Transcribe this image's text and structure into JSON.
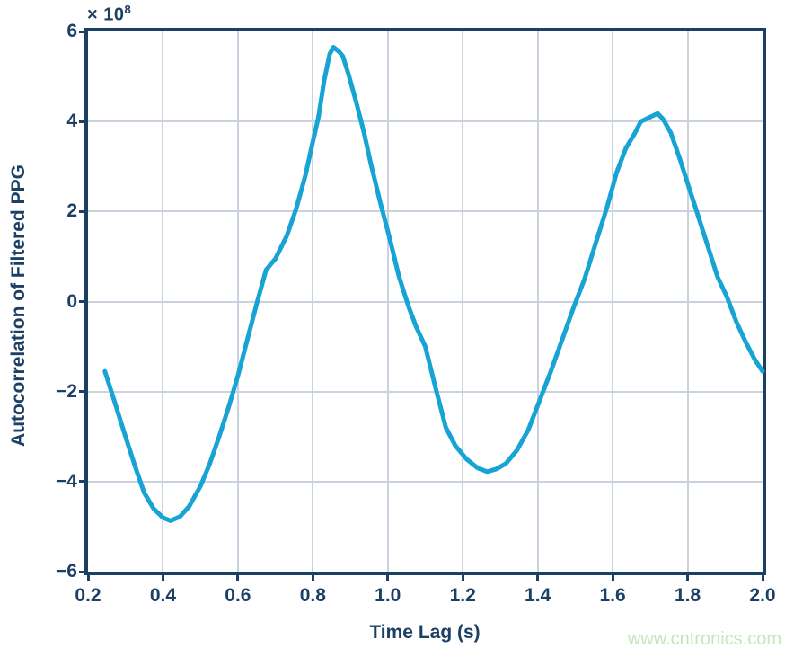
{
  "figure": {
    "offset": {
      "base": "× 10",
      "exp": "8"
    },
    "x_axis": {
      "label": "Time Lag (s)",
      "tick_values": [
        0.2,
        0.4,
        0.6,
        0.8,
        1.0,
        1.2,
        1.4,
        1.6,
        1.8,
        2.0
      ],
      "tick_labels": [
        "0.2",
        "0.4",
        "0.6",
        "0.8",
        "1.0",
        "1.2",
        "1.4",
        "1.6",
        "1.8",
        "2.0"
      ]
    },
    "y_axis": {
      "label": "Autocorrelation of Filtered PPG",
      "tick_values": [
        6,
        4,
        2,
        0,
        -2,
        -4,
        -6
      ],
      "tick_labels": [
        "6",
        "4",
        "2",
        "0",
        "−2",
        "−4",
        "−6"
      ]
    },
    "grid": {
      "x_values": [
        0.4,
        0.6,
        0.8,
        1.0,
        1.2,
        1.4,
        1.6,
        1.8
      ],
      "y_values": [
        4,
        2,
        0,
        -2,
        -4
      ]
    }
  },
  "watermark": {
    "text": "www.cntronics.com"
  },
  "colors": {
    "axis_navy": "#1c3f66",
    "curve_cyan": "#17a3d4",
    "grid": "#c9d2dd",
    "watermark_green": "#c5e6ba"
  },
  "chart_data": {
    "type": "line",
    "title": "",
    "xlabel": "Time Lag (s)",
    "ylabel": "Autocorrelation of Filtered PPG",
    "y_unit_scale": "1e8",
    "xlim": [
      0.2,
      2.0
    ],
    "ylim_e8": [
      -6,
      6
    ],
    "grid": true,
    "legend": false,
    "series": [
      {
        "name": "Autocorrelation of Filtered PPG",
        "x": [
          0.245,
          0.27,
          0.3,
          0.325,
          0.35,
          0.375,
          0.4,
          0.42,
          0.445,
          0.47,
          0.5,
          0.525,
          0.55,
          0.575,
          0.6,
          0.625,
          0.65,
          0.675,
          0.7,
          0.73,
          0.755,
          0.78,
          0.8,
          0.815,
          0.83,
          0.845,
          0.855,
          0.87,
          0.88,
          0.895,
          0.915,
          0.935,
          0.955,
          0.98,
          1.005,
          1.03,
          1.055,
          1.075,
          1.1,
          1.13,
          1.155,
          1.18,
          1.21,
          1.24,
          1.265,
          1.29,
          1.315,
          1.345,
          1.375,
          1.405,
          1.435,
          1.465,
          1.495,
          1.525,
          1.555,
          1.585,
          1.61,
          1.635,
          1.66,
          1.675,
          1.7,
          1.72,
          1.735,
          1.755,
          1.78,
          1.805,
          1.83,
          1.855,
          1.88,
          1.905,
          1.93,
          1.955,
          1.98,
          2.0
        ],
        "y_e8": [
          -1.55,
          -2.2,
          -3.0,
          -3.65,
          -4.25,
          -4.6,
          -4.8,
          -4.87,
          -4.78,
          -4.55,
          -4.1,
          -3.6,
          -3.0,
          -2.35,
          -1.65,
          -0.85,
          -0.05,
          0.7,
          0.95,
          1.45,
          2.05,
          2.8,
          3.55,
          4.1,
          4.9,
          5.5,
          5.65,
          5.55,
          5.45,
          5.05,
          4.45,
          3.8,
          3.05,
          2.2,
          1.4,
          0.55,
          -0.1,
          -0.55,
          -1.0,
          -2.0,
          -2.8,
          -3.2,
          -3.5,
          -3.7,
          -3.78,
          -3.72,
          -3.6,
          -3.3,
          -2.85,
          -2.2,
          -1.55,
          -0.85,
          -0.15,
          0.5,
          1.3,
          2.1,
          2.85,
          3.4,
          3.75,
          4.0,
          4.1,
          4.18,
          4.05,
          3.75,
          3.15,
          2.5,
          1.85,
          1.2,
          0.55,
          0.1,
          -0.45,
          -0.9,
          -1.3,
          -1.55
        ]
      }
    ]
  }
}
